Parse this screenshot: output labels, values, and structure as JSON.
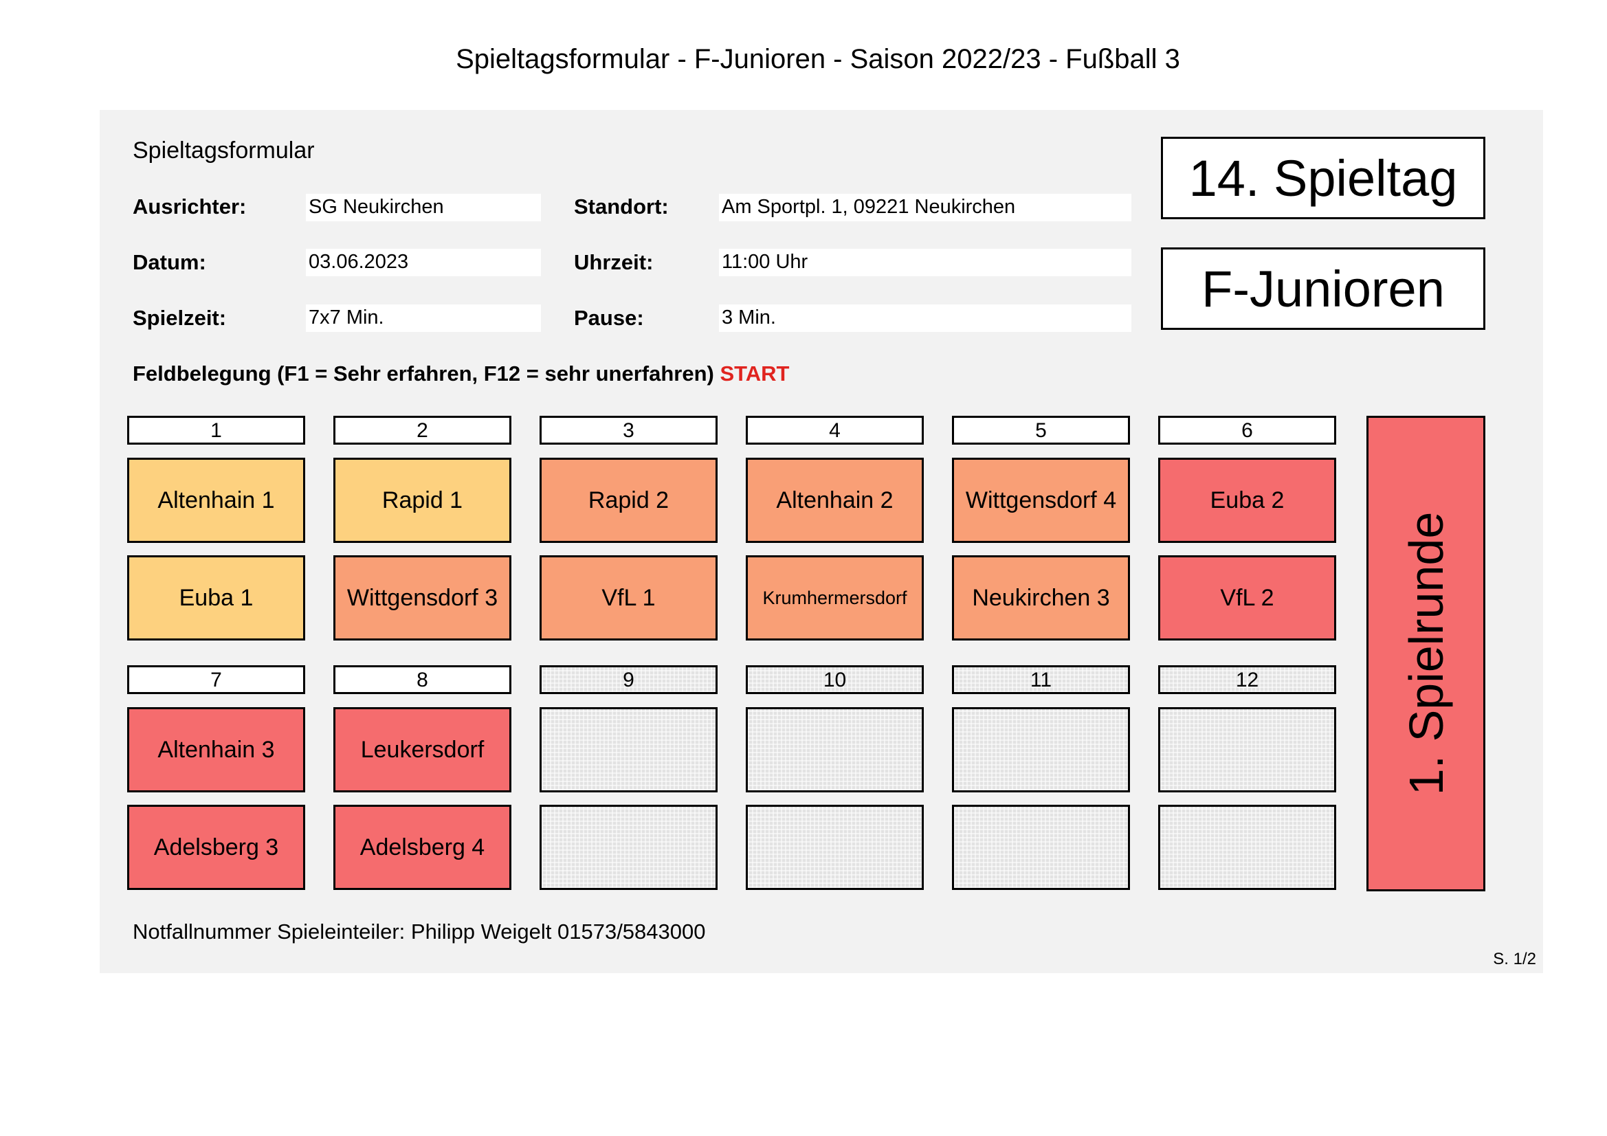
{
  "document_title": "Spieltagsformular - F-Junioren - Saison 2022/23 - Fußball 3",
  "form": {
    "section_title": "Spieltagsformular",
    "ausrichter_label": "Ausrichter:",
    "ausrichter_value": "SG Neukirchen",
    "standort_label": "Standort:",
    "standort_value": "Am Sportpl. 1, 09221 Neukirchen",
    "datum_label": "Datum:",
    "datum_value": "03.06.2023",
    "uhrzeit_label": "Uhrzeit:",
    "uhrzeit_value": "11:00 Uhr",
    "spielzeit_label": "Spielzeit:",
    "spielzeit_value": "7x7 Min.",
    "pause_label": "Pause:",
    "pause_value": "3 Min."
  },
  "spieltag_label": "14. Spieltag",
  "category_label": "F-Junioren",
  "feldbelegung": {
    "heading": "Feldbelegung (F1 = Sehr erfahren, F12 = sehr unerfahren)",
    "start_label": "START"
  },
  "colors": {
    "level_1": "#fdd17f",
    "level_2": "#f99f76",
    "level_3": "#f56c6e",
    "empty": "#e3e3e3",
    "start": "#e0241f"
  },
  "fields": [
    {
      "number": "1",
      "teams": [
        "Altenhain 1",
        "Euba 1"
      ],
      "colors": [
        "#fdd17f",
        "#fdd17f"
      ]
    },
    {
      "number": "2",
      "teams": [
        "Rapid 1",
        "Wittgensdorf 3"
      ],
      "colors": [
        "#fdd17f",
        "#f99f76"
      ]
    },
    {
      "number": "3",
      "teams": [
        "Rapid 2",
        "VfL 1"
      ],
      "colors": [
        "#f99f76",
        "#f99f76"
      ]
    },
    {
      "number": "4",
      "teams": [
        "Altenhain 2",
        "Krumhermersdorf"
      ],
      "colors": [
        "#f99f76",
        "#f99f76"
      ]
    },
    {
      "number": "5",
      "teams": [
        "Wittgensdorf 4",
        "Neukirchen 3"
      ],
      "colors": [
        "#f99f76",
        "#f99f76"
      ]
    },
    {
      "number": "6",
      "teams": [
        "Euba 2",
        "VfL 2"
      ],
      "colors": [
        "#f56c6e",
        "#f56c6e"
      ]
    },
    {
      "number": "7",
      "teams": [
        "Altenhain 3",
        "Adelsberg 3"
      ],
      "colors": [
        "#f56c6e",
        "#f56c6e"
      ]
    },
    {
      "number": "8",
      "teams": [
        "Leukersdorf",
        "Adelsberg 4"
      ],
      "colors": [
        "#f56c6e",
        "#f56c6e"
      ]
    },
    {
      "number": "9",
      "teams": [
        "",
        ""
      ],
      "colors": [],
      "empty": true
    },
    {
      "number": "10",
      "teams": [
        "",
        ""
      ],
      "colors": [],
      "empty": true
    },
    {
      "number": "11",
      "teams": [
        "",
        ""
      ],
      "colors": [],
      "empty": true
    },
    {
      "number": "12",
      "teams": [
        "",
        ""
      ],
      "colors": [],
      "empty": true
    }
  ],
  "round_label": "1. Spielrunde",
  "footer": {
    "emergency": "Notfallnummer Spieleinteiler: Philipp Weigelt 01573/5843000",
    "page": "S. 1/2"
  }
}
